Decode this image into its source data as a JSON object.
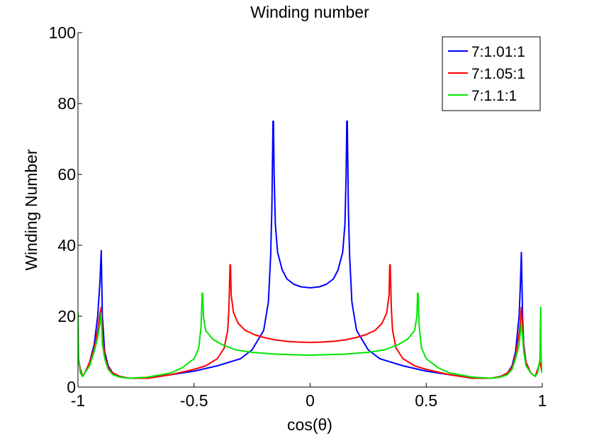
{
  "chart_data": {
    "type": "line",
    "title": "Winding number",
    "xlabel": "cos(θ)",
    "ylabel": "Winding Number",
    "xlim": [
      -1,
      1
    ],
    "ylim": [
      0,
      100
    ],
    "xticks": [
      -1,
      -0.5,
      0,
      0.5,
      1
    ],
    "yticks": [
      0,
      20,
      40,
      60,
      80,
      100
    ],
    "xtick_labels": [
      "-1",
      "-0.5",
      "0",
      "0.5",
      "1"
    ],
    "ytick_labels": [
      "0",
      "20",
      "40",
      "60",
      "80",
      "100"
    ],
    "grid": false,
    "legend_position": "top-right",
    "series": [
      {
        "name": "7:1.01:1",
        "color": "#0000ff",
        "x": [
          -1,
          -0.99,
          -0.98,
          -0.97,
          -0.95,
          -0.93,
          -0.915,
          -0.905,
          -0.9,
          -0.895,
          -0.885,
          -0.87,
          -0.85,
          -0.82,
          -0.78,
          -0.7,
          -0.6,
          -0.5,
          -0.4,
          -0.3,
          -0.25,
          -0.2,
          -0.18,
          -0.17,
          -0.165,
          -0.16,
          -0.158,
          -0.155,
          -0.15,
          -0.14,
          -0.12,
          -0.1,
          -0.07,
          -0.04,
          0,
          0.04,
          0.07,
          0.1,
          0.12,
          0.14,
          0.15,
          0.155,
          0.158,
          0.16,
          0.165,
          0.17,
          0.18,
          0.2,
          0.25,
          0.3,
          0.4,
          0.5,
          0.6,
          0.7,
          0.78,
          0.82,
          0.85,
          0.87,
          0.885,
          0.9,
          0.905,
          0.91,
          0.915,
          0.92,
          0.93,
          0.95,
          0.97,
          0.98,
          0.99,
          1.0
        ],
        "y": [
          9,
          5,
          3,
          4,
          7,
          12,
          20,
          30,
          38.5,
          20,
          10,
          6,
          4,
          3,
          2.5,
          2.5,
          3.5,
          4.5,
          6,
          8,
          10.5,
          16,
          24,
          37,
          50,
          75,
          75,
          60,
          46,
          38,
          33,
          30.5,
          29,
          28.3,
          28,
          28.3,
          29,
          30.5,
          33,
          38,
          46,
          60,
          75,
          75,
          50,
          37,
          24,
          16,
          10.5,
          8,
          6,
          4.5,
          3.5,
          2.5,
          2.5,
          3,
          4,
          6,
          10,
          20,
          28,
          38,
          20,
          12,
          7,
          4,
          3,
          5,
          7,
          4
        ]
      },
      {
        "name": "7:1.05:1",
        "color": "#ff0000",
        "x": [
          -1,
          -0.99,
          -0.98,
          -0.97,
          -0.95,
          -0.93,
          -0.915,
          -0.905,
          -0.9,
          -0.895,
          -0.885,
          -0.87,
          -0.85,
          -0.82,
          -0.78,
          -0.7,
          -0.6,
          -0.5,
          -0.45,
          -0.4,
          -0.37,
          -0.355,
          -0.35,
          -0.345,
          -0.343,
          -0.34,
          -0.33,
          -0.31,
          -0.28,
          -0.24,
          -0.2,
          -0.15,
          -0.1,
          -0.05,
          0,
          0.05,
          0.1,
          0.15,
          0.2,
          0.24,
          0.28,
          0.31,
          0.33,
          0.34,
          0.343,
          0.345,
          0.35,
          0.355,
          0.37,
          0.4,
          0.45,
          0.5,
          0.6,
          0.7,
          0.78,
          0.82,
          0.85,
          0.87,
          0.885,
          0.9,
          0.905,
          0.91,
          0.915,
          0.92,
          0.93,
          0.95,
          0.97,
          0.98,
          0.99,
          1.0
        ],
        "y": [
          8,
          5,
          3,
          4,
          7,
          11,
          16,
          21,
          22.5,
          15,
          9,
          5.5,
          4,
          3,
          2.5,
          2.5,
          3.5,
          5,
          6,
          8,
          11,
          16,
          22,
          34.5,
          34.5,
          26,
          21,
          18,
          16,
          14.8,
          14,
          13.3,
          12.9,
          12.7,
          12.6,
          12.7,
          12.9,
          13.3,
          14,
          14.8,
          16,
          18,
          21,
          26,
          34.5,
          34.5,
          22,
          16,
          11,
          8,
          6,
          5,
          3.5,
          2.5,
          2.5,
          3,
          4,
          5.5,
          9,
          15,
          18,
          22.5,
          17,
          11,
          7,
          4,
          3,
          5,
          7,
          4
        ]
      },
      {
        "name": "7:1.1:1",
        "color": "#00e600",
        "x": [
          -1,
          -0.997,
          -0.99,
          -0.98,
          -0.97,
          -0.95,
          -0.93,
          -0.915,
          -0.905,
          -0.9,
          -0.895,
          -0.885,
          -0.87,
          -0.85,
          -0.82,
          -0.78,
          -0.7,
          -0.6,
          -0.55,
          -0.5,
          -0.48,
          -0.47,
          -0.465,
          -0.463,
          -0.46,
          -0.45,
          -0.42,
          -0.38,
          -0.32,
          -0.25,
          -0.15,
          -0.05,
          0,
          0.05,
          0.15,
          0.25,
          0.32,
          0.38,
          0.42,
          0.45,
          0.46,
          0.463,
          0.465,
          0.47,
          0.48,
          0.5,
          0.55,
          0.6,
          0.7,
          0.78,
          0.82,
          0.85,
          0.87,
          0.885,
          0.9,
          0.91,
          0.915,
          0.92,
          0.93,
          0.95,
          0.97,
          0.98,
          0.99,
          0.993,
          0.995,
          1.0
        ],
        "y": [
          21,
          8,
          4,
          3,
          4,
          6,
          10,
          14,
          18,
          21,
          12,
          8,
          5,
          3.5,
          2.8,
          2.5,
          2.8,
          4,
          5.5,
          8,
          11,
          17,
          26.5,
          26.5,
          20,
          16,
          13.5,
          12,
          10.5,
          9.8,
          9.3,
          9.1,
          9,
          9.1,
          9.3,
          9.8,
          10.5,
          12,
          13.5,
          16,
          20,
          26.5,
          26.5,
          17,
          11,
          8,
          5.5,
          4,
          2.8,
          2.5,
          2.8,
          3.5,
          5,
          8,
          12,
          18,
          14,
          10,
          6,
          4,
          3,
          4,
          8,
          22.5,
          8,
          4
        ]
      }
    ]
  }
}
